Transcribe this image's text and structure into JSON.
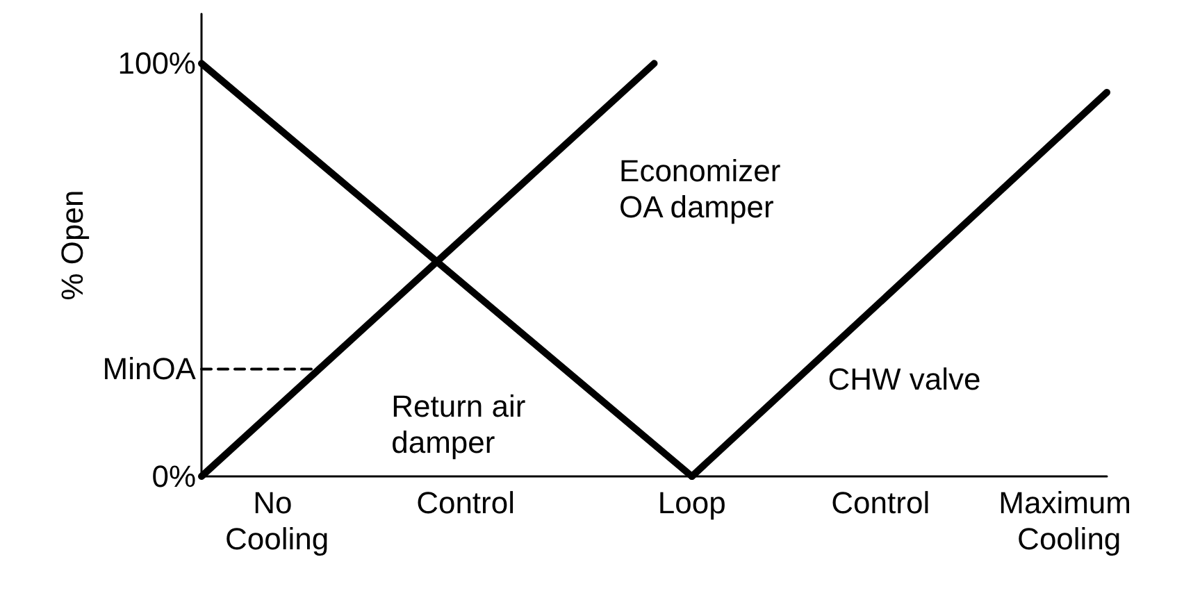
{
  "chart_data": {
    "type": "line",
    "ylabel": "% Open",
    "categories": [
      null,
      null,
      "No Cooling",
      null,
      null,
      null,
      null,
      "Control",
      null,
      null,
      null,
      null,
      null,
      "Loop",
      null,
      null,
      null,
      null,
      "Control",
      null,
      null,
      null,
      null,
      "Maximum Cooling",
      null
    ],
    "ylim": [
      0,
      112
    ],
    "yticks": [
      {
        "value": 0,
        "label": "0%"
      },
      {
        "value": 26,
        "label": "MinOA"
      },
      {
        "value": 100,
        "label": "100%"
      }
    ],
    "grid": false,
    "legend": false,
    "marker": "none",
    "line_style": "solid",
    "series": [
      {
        "name": "Economizer OA damper",
        "color": "#000000",
        "values": [
          0,
          null,
          null,
          null,
          null,
          null,
          null,
          null,
          null,
          null,
          null,
          null,
          100,
          null,
          null,
          null,
          null,
          null,
          null,
          null,
          null,
          null,
          null,
          null,
          null
        ]
      },
      {
        "name": "Return air damper",
        "color": "#000000",
        "values": [
          100,
          null,
          null,
          null,
          null,
          null,
          null,
          null,
          null,
          null,
          null,
          null,
          null,
          0,
          null,
          null,
          null,
          null,
          null,
          null,
          null,
          null,
          null,
          null,
          null
        ]
      },
      {
        "name": "CHW valve",
        "color": "#000000",
        "values": [
          null,
          null,
          null,
          null,
          null,
          null,
          null,
          null,
          null,
          null,
          null,
          null,
          null,
          0,
          null,
          null,
          null,
          null,
          null,
          null,
          null,
          null,
          null,
          null,
          93
        ]
      },
      {
        "color": "#000000",
        "values": [
          26,
          null,
          null,
          26,
          null,
          null,
          null,
          null,
          null,
          null,
          null,
          null,
          null,
          null,
          null,
          null,
          null,
          null,
          null,
          null,
          null,
          null,
          null,
          null,
          null
        ],
        "line_style": "dashed"
      }
    ]
  }
}
